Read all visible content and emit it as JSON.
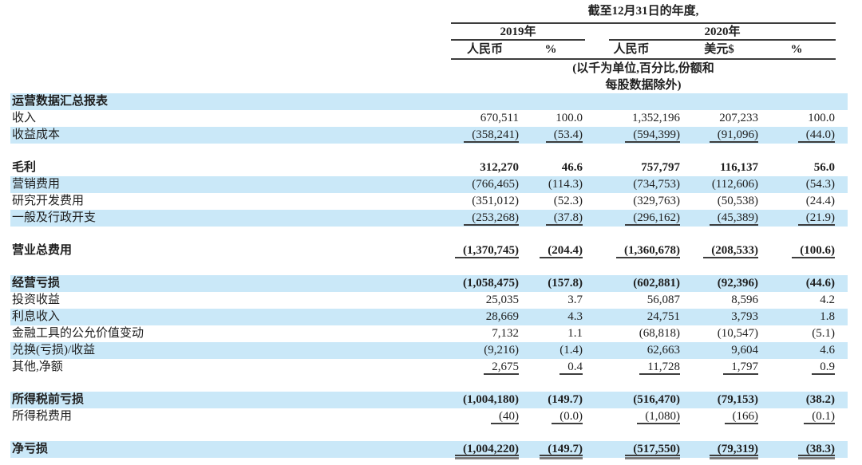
{
  "table": {
    "title": "截至12月31日的年度,",
    "year_groups": [
      {
        "label": "2019年"
      },
      {
        "label": "2020年"
      }
    ],
    "columns": [
      "人民币",
      "%",
      "人民币",
      "美元$",
      "%"
    ],
    "unit_note_line1": "(以千为单位,百分比,份额和",
    "unit_note_line2": "每股数据除外)",
    "rows": [
      {
        "label": "运营数据汇总报表",
        "values": [
          "",
          "",
          "",
          "",
          ""
        ],
        "bold": true,
        "shaded": true
      },
      {
        "label": "收入",
        "values": [
          "670,511",
          "100.0",
          "1,352,196",
          "207,233",
          "100.0"
        ]
      },
      {
        "label": "收益成本",
        "values": [
          "(358,241)",
          "(53.4)",
          "(594,399)",
          "(91,096)",
          "(44.0)"
        ],
        "shaded": true,
        "underline": true
      },
      {
        "spacer": true
      },
      {
        "label": "毛利",
        "values": [
          "312,270",
          "46.6",
          "757,797",
          "116,137",
          "56.0"
        ],
        "bold": true
      },
      {
        "label": "营销费用",
        "values": [
          "(766,465)",
          "(114.3)",
          "(734,753)",
          "(112,606)",
          "(54.3)"
        ],
        "shaded": true
      },
      {
        "label": "研究开发费用",
        "values": [
          "(351,012)",
          "(52.3)",
          "(329,763)",
          "(50,538)",
          "(24.4)"
        ]
      },
      {
        "label": "一般及行政开支",
        "values": [
          "(253,268)",
          "(37.8)",
          "(296,162)",
          "(45,389)",
          "(21.9)"
        ],
        "shaded": true,
        "underline": true
      },
      {
        "spacer": true
      },
      {
        "label": "营业总费用",
        "values": [
          "(1,370,745)",
          "(204.4)",
          "(1,360,678)",
          "(208,533)",
          "(100.6)"
        ],
        "bold": true,
        "underline": true
      },
      {
        "spacer": true
      },
      {
        "label": "经营亏损",
        "values": [
          "(1,058,475)",
          "(157.8)",
          "(602,881)",
          "(92,396)",
          "(44.6)"
        ],
        "bold": true,
        "shaded": true
      },
      {
        "label": "投资收益",
        "values": [
          "25,035",
          "3.7",
          "56,087",
          "8,596",
          "4.2"
        ]
      },
      {
        "label": "利息收入",
        "values": [
          "28,669",
          "4.3",
          "24,751",
          "3,793",
          "1.8"
        ],
        "shaded": true
      },
      {
        "label": "金融工具的公允价值变动",
        "values": [
          "7,132",
          "1.1",
          "(68,818)",
          "(10,547)",
          "(5.1)"
        ]
      },
      {
        "label": "兑换(亏损)/收益",
        "values": [
          "(9,216)",
          "(1.4)",
          "62,663",
          "9,604",
          "4.6"
        ],
        "shaded": true
      },
      {
        "label": "其他,净额",
        "values": [
          "2,675",
          "0.4",
          "11,728",
          "1,797",
          "0.9"
        ],
        "underline": true
      },
      {
        "spacer": true
      },
      {
        "label": "所得税前亏损",
        "values": [
          "(1,004,180)",
          "(149.7)",
          "(516,470)",
          "(79,153)",
          "(38.2)"
        ],
        "bold": true,
        "shaded": true
      },
      {
        "label": "所得税费用",
        "values": [
          "(40)",
          "(0.0)",
          "(1,080)",
          "(166)",
          "(0.1)"
        ],
        "underline": true
      },
      {
        "spacer": true
      },
      {
        "label": "净亏损",
        "values": [
          "(1,004,220)",
          "(149.7)",
          "(517,550)",
          "(79,319)",
          "(38.3)"
        ],
        "bold": true,
        "shaded": true,
        "double_underline": true
      }
    ]
  },
  "colors": {
    "row_stripe": "#cae8f8",
    "text": "#1f1f1f",
    "rule": "#3d3d3d",
    "total_rule": "#7d7d7d"
  }
}
